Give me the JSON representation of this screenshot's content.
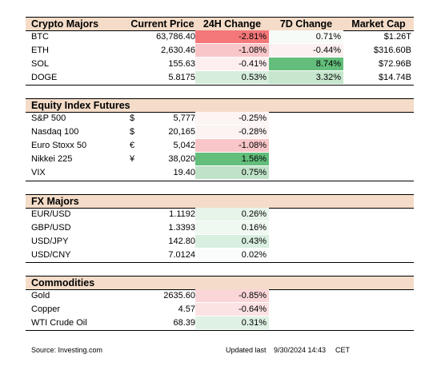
{
  "header": {
    "crypto_title": "Crypto Majors",
    "current_price": "Current Price",
    "change_24h": "24H Change",
    "change_7d": "7D Change",
    "market_cap": "Market Cap"
  },
  "crypto": [
    {
      "name": "BTC",
      "price": "63,786.40",
      "c24": "-2.81%",
      "c24_bg": "#f4777a",
      "c7": "0.71%",
      "c7_bg": "#f7fbf8",
      "mcap": "$1.26T"
    },
    {
      "name": "ETH",
      "price": "2,630.46",
      "c24": "-1.08%",
      "c24_bg": "#f8c6c8",
      "c7": "-0.44%",
      "c7_bg": "#fdf0f0",
      "mcap": "$316.60B"
    },
    {
      "name": "SOL",
      "price": "155.63",
      "c24": "-0.41%",
      "c24_bg": "#fdeff0",
      "c7": "8.74%",
      "c7_bg": "#63be7b",
      "mcap": "$72.96B"
    },
    {
      "name": "DOGE",
      "price": "5.8175",
      "c24": "0.53%",
      "c24_bg": "#d6eddc",
      "c7": "3.32%",
      "c7_bg": "#c6e6ce",
      "mcap": "$14.74B"
    }
  ],
  "equity": {
    "title": "Equity Index Futures",
    "rows": [
      {
        "name": "S&P 500",
        "cur": "$",
        "price": "5,777",
        "c24": "-0.25%",
        "c24_bg": "#fdf4f4"
      },
      {
        "name": "Nasdaq 100",
        "cur": "$",
        "price": "20,165",
        "c24": "-0.28%",
        "c24_bg": "#fdf3f3"
      },
      {
        "name": "Euro Stoxx 50",
        "cur": "€",
        "price": "5,042",
        "c24": "-1.08%",
        "c24_bg": "#f8c6c8"
      },
      {
        "name": "Nikkei 225",
        "cur": "¥",
        "price": "38,020",
        "c24": "1.56%",
        "c24_bg": "#63be7b"
      },
      {
        "name": "VIX",
        "cur": "",
        "price": "19.40",
        "c24": "0.75%",
        "c24_bg": "#bfe2c8"
      }
    ]
  },
  "fx": {
    "title": "FX Majors",
    "rows": [
      {
        "name": "EUR/USD",
        "price": "1.1192",
        "c24": "0.26%",
        "c24_bg": "#e7f4ea"
      },
      {
        "name": "GBP/USD",
        "price": "1.3393",
        "c24": "0.16%",
        "c24_bg": "#eff8f1"
      },
      {
        "name": "USD/JPY",
        "price": "142.80",
        "c24": "0.43%",
        "c24_bg": "#d8eedf"
      },
      {
        "name": "USD/CNY",
        "price": "7.0124",
        "c24": "0.02%",
        "c24_bg": "#fafdfb"
      }
    ]
  },
  "commodities": {
    "title": "Commodities",
    "rows": [
      {
        "name": "Gold",
        "price": "2635.60",
        "c24": "-0.85%",
        "c24_bg": "#fad6d8"
      },
      {
        "name": "Copper",
        "price": "4.57",
        "c24": "-0.64%",
        "c24_bg": "#fbe2e3"
      },
      {
        "name": "WTI Crude Oil",
        "price": "68.39",
        "c24": "0.31%",
        "c24_bg": "#dff1e4"
      }
    ]
  },
  "footer": {
    "source": "Source: Investing.com",
    "updated_label": "Updated last",
    "updated_time": "9/30/2024 14:43",
    "timezone": "CET"
  }
}
